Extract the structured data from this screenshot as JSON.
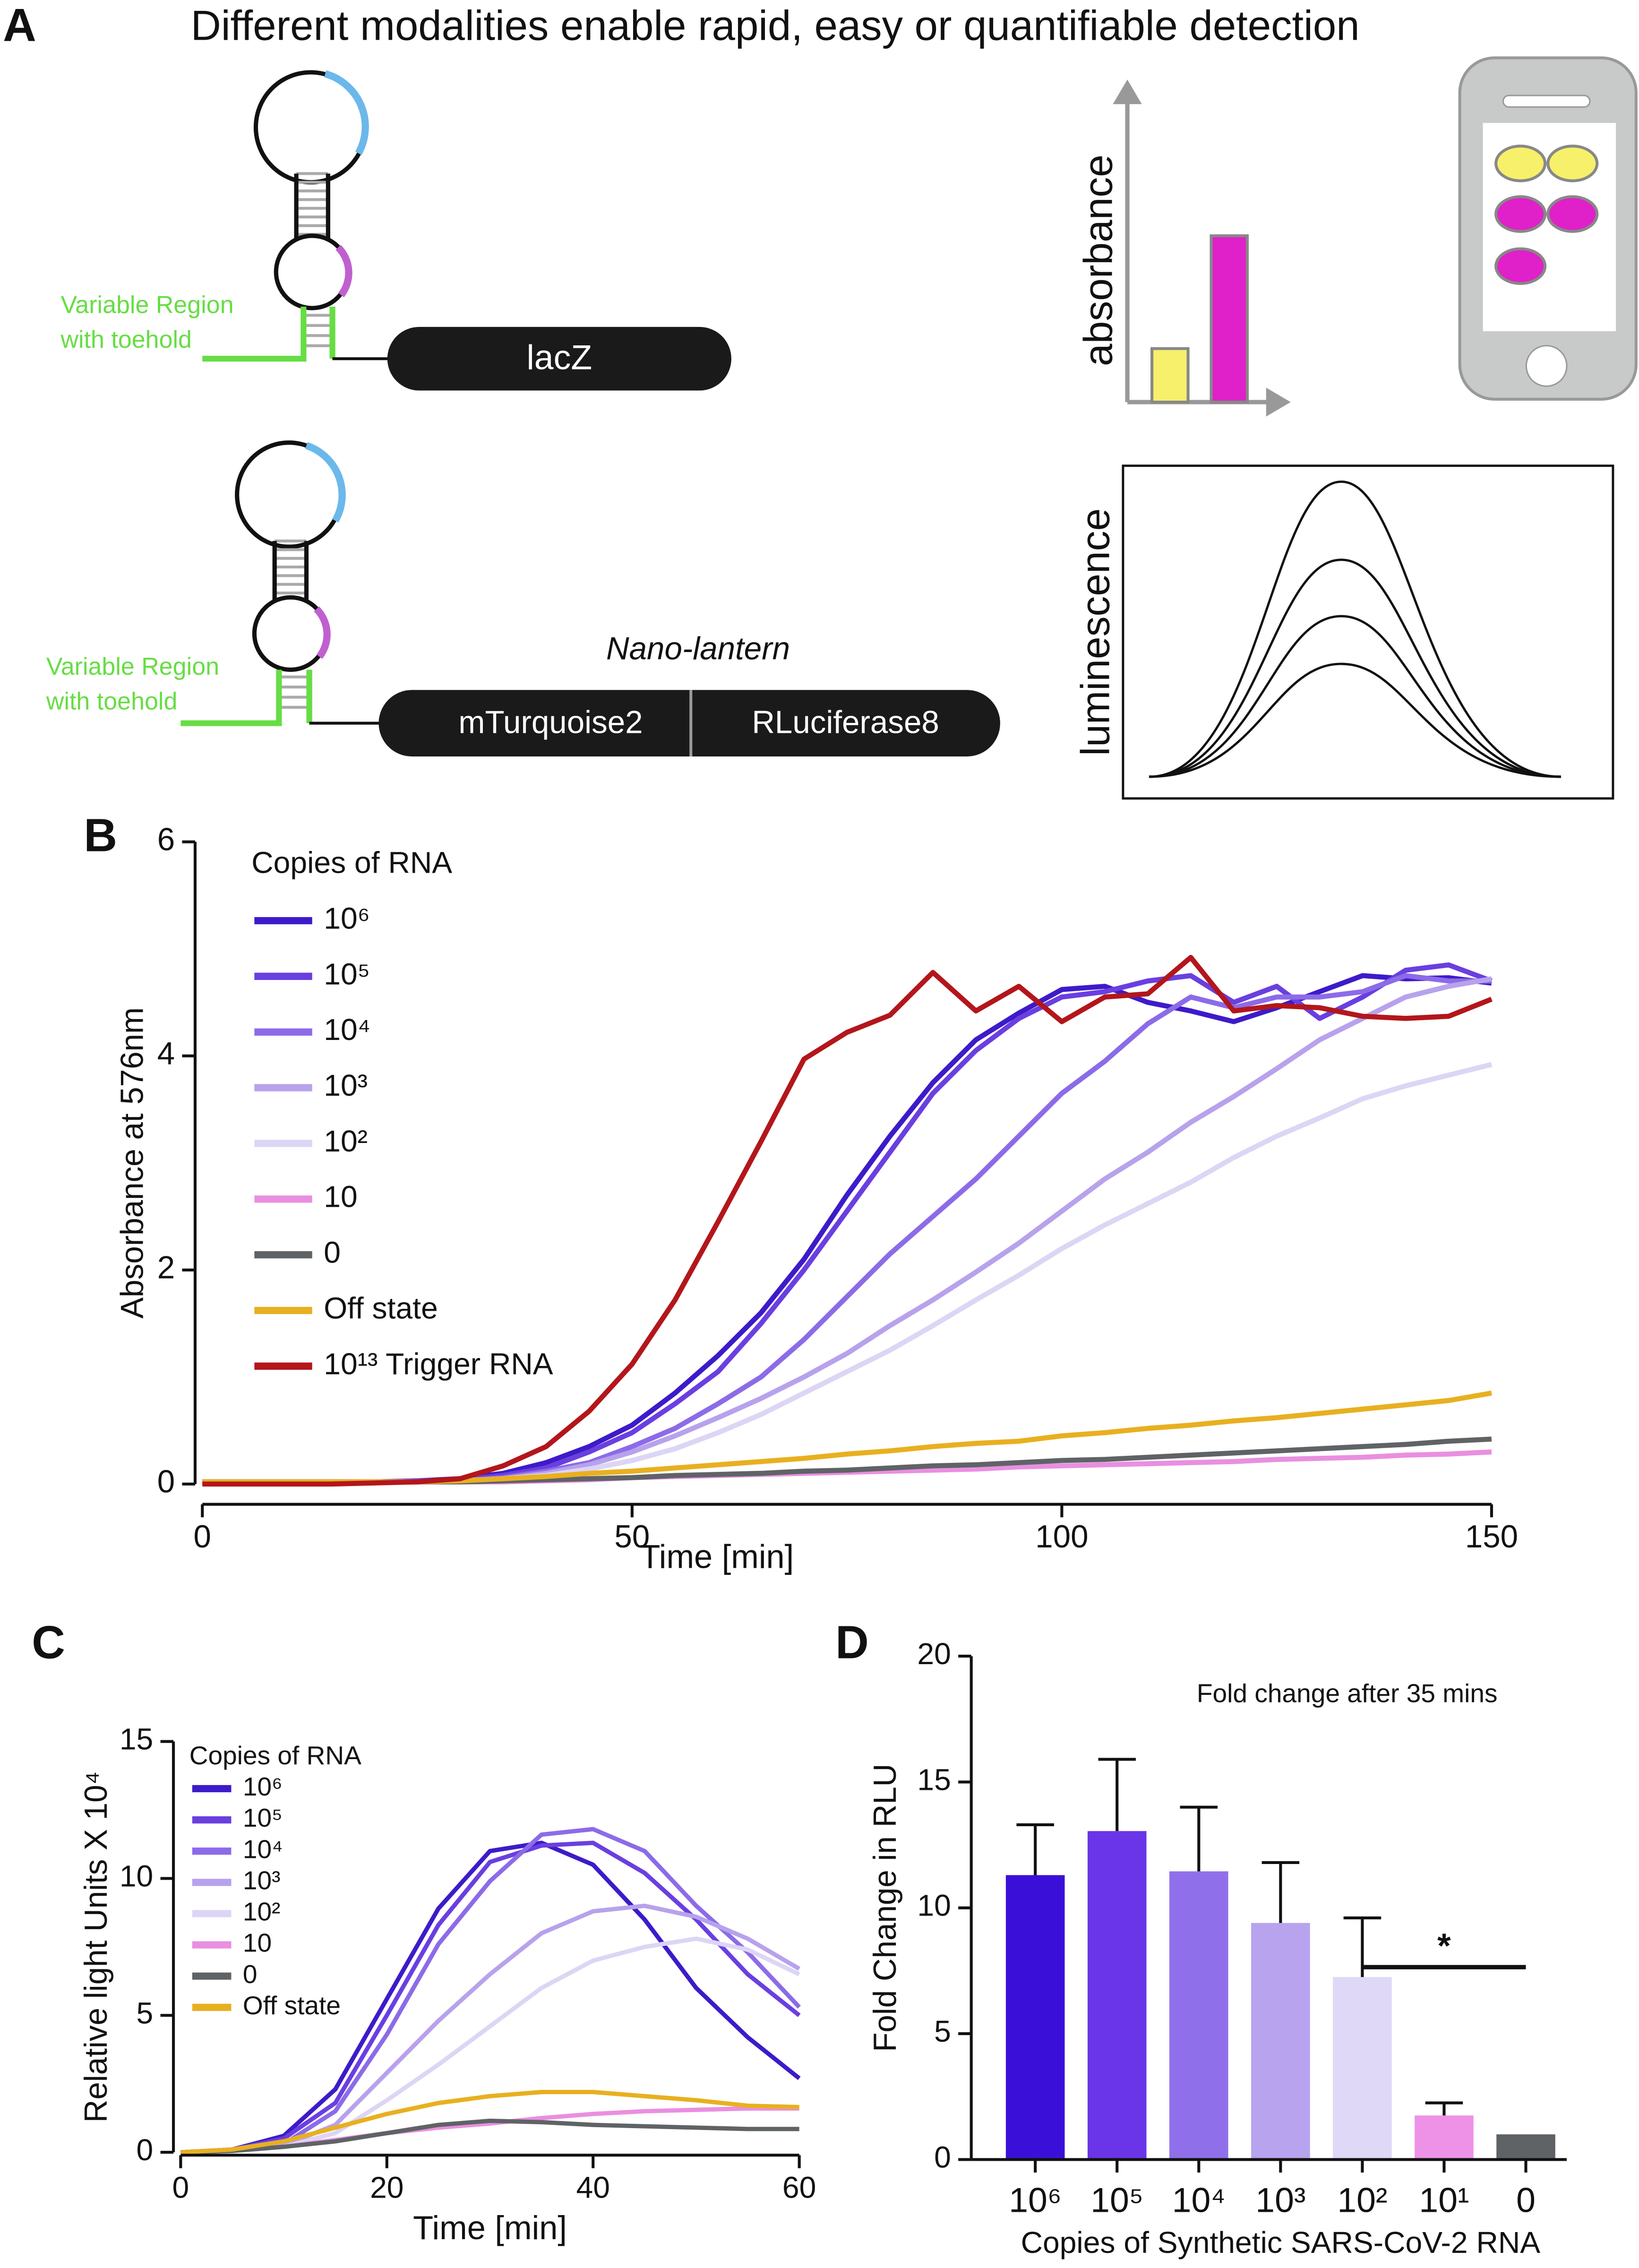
{
  "panel_a": {
    "label": "A",
    "title": "Different modalities enable rapid, easy or quantifiable  detection",
    "construct_1": {
      "region": [
        "Variable Region",
        "with toehold"
      ],
      "reporter": "lacZ"
    },
    "construct_2": {
      "region": [
        "Variable Region",
        "with toehold"
      ],
      "name": "Nano-lantern",
      "reporter": [
        "mTurquoise2",
        "RLuciferase8"
      ]
    },
    "readouts": [
      "absorbance",
      "luminescence"
    ]
  },
  "chart_data": [
    {
      "type": "line",
      "label": "B",
      "xlabel": "Time [min]",
      "ylabel": "Absorbance at 576nm",
      "legend_title": "Copies of RNA",
      "legend": "upper left",
      "xlim": [
        0,
        150
      ],
      "xticks": [
        0,
        50,
        100,
        150
      ],
      "ylim": [
        0,
        6
      ],
      "yticks": [
        0,
        2,
        4,
        6
      ],
      "x": [
        0,
        5,
        10,
        15,
        20,
        25,
        30,
        35,
        40,
        45,
        50,
        55,
        60,
        65,
        70,
        75,
        80,
        85,
        90,
        95,
        100,
        105,
        110,
        115,
        120,
        125,
        130,
        135,
        140,
        145,
        150
      ],
      "series": [
        {
          "name": "10⁶",
          "color": "#3d1bc9",
          "values": [
            0.02,
            0.02,
            0.02,
            0.02,
            0.02,
            0.03,
            0.05,
            0.1,
            0.2,
            0.35,
            0.55,
            0.85,
            1.2,
            1.6,
            2.1,
            2.7,
            3.25,
            3.75,
            4.15,
            4.4,
            4.62,
            4.65,
            4.5,
            4.42,
            4.32,
            4.45,
            4.6,
            4.75,
            4.72,
            4.73,
            4.68
          ]
        },
        {
          "name": "10⁵",
          "color": "#6a3fe0",
          "values": [
            0.02,
            0.02,
            0.02,
            0.02,
            0.02,
            0.03,
            0.04,
            0.08,
            0.15,
            0.3,
            0.48,
            0.75,
            1.05,
            1.5,
            2.0,
            2.55,
            3.1,
            3.65,
            4.05,
            4.35,
            4.55,
            4.6,
            4.7,
            4.75,
            4.5,
            4.65,
            4.35,
            4.55,
            4.8,
            4.85,
            4.7
          ]
        },
        {
          "name": "10⁴",
          "color": "#8c6be8",
          "values": [
            0.02,
            0.02,
            0.02,
            0.02,
            0.02,
            0.02,
            0.03,
            0.06,
            0.12,
            0.2,
            0.35,
            0.52,
            0.75,
            1.0,
            1.35,
            1.75,
            2.15,
            2.5,
            2.85,
            3.25,
            3.65,
            3.95,
            4.3,
            4.55,
            4.45,
            4.55,
            4.55,
            4.6,
            4.75,
            4.7,
            4.7
          ]
        },
        {
          "name": "10³",
          "color": "#b7a2ec",
          "values": [
            0.02,
            0.02,
            0.02,
            0.02,
            0.02,
            0.02,
            0.03,
            0.05,
            0.1,
            0.18,
            0.3,
            0.45,
            0.62,
            0.8,
            1.0,
            1.22,
            1.48,
            1.72,
            1.98,
            2.25,
            2.55,
            2.85,
            3.1,
            3.38,
            3.62,
            3.88,
            4.15,
            4.35,
            4.55,
            4.65,
            4.72
          ]
        },
        {
          "name": "10²",
          "color": "#ddd5f5",
          "values": [
            0.02,
            0.02,
            0.02,
            0.02,
            0.02,
            0.02,
            0.03,
            0.05,
            0.08,
            0.14,
            0.22,
            0.33,
            0.48,
            0.65,
            0.85,
            1.05,
            1.25,
            1.48,
            1.72,
            1.95,
            2.2,
            2.42,
            2.62,
            2.82,
            3.05,
            3.25,
            3.42,
            3.6,
            3.72,
            3.82,
            3.92
          ]
        },
        {
          "name": "10",
          "color": "#e98fe0",
          "values": [
            0.02,
            0.02,
            0.02,
            0.02,
            0.02,
            0.02,
            0.02,
            0.02,
            0.03,
            0.04,
            0.06,
            0.07,
            0.08,
            0.09,
            0.1,
            0.11,
            0.12,
            0.13,
            0.14,
            0.16,
            0.17,
            0.18,
            0.19,
            0.2,
            0.21,
            0.23,
            0.24,
            0.25,
            0.27,
            0.28,
            0.3
          ]
        },
        {
          "name": "0",
          "color": "#5f6366",
          "values": [
            0.02,
            0.02,
            0.02,
            0.02,
            0.02,
            0.02,
            0.02,
            0.03,
            0.04,
            0.05,
            0.06,
            0.08,
            0.09,
            0.1,
            0.12,
            0.13,
            0.15,
            0.17,
            0.18,
            0.2,
            0.22,
            0.23,
            0.25,
            0.27,
            0.29,
            0.31,
            0.33,
            0.35,
            0.37,
            0.4,
            0.42
          ]
        },
        {
          "name": "Off state",
          "color": "#e8b020",
          "values": [
            0.02,
            0.02,
            0.02,
            0.02,
            0.02,
            0.02,
            0.03,
            0.05,
            0.07,
            0.1,
            0.12,
            0.15,
            0.18,
            0.21,
            0.24,
            0.28,
            0.31,
            0.35,
            0.38,
            0.4,
            0.45,
            0.48,
            0.52,
            0.55,
            0.59,
            0.62,
            0.66,
            0.7,
            0.74,
            0.78,
            0.85
          ]
        },
        {
          "name": "10¹³ Trigger RNA",
          "color": "#b3161b",
          "values": [
            0,
            0,
            0,
            0,
            0.01,
            0.02,
            0.05,
            0.17,
            0.35,
            0.68,
            1.12,
            1.72,
            2.45,
            3.2,
            3.97,
            4.22,
            4.38,
            4.78,
            4.42,
            4.65,
            4.32,
            4.55,
            4.58,
            4.92,
            4.42,
            4.47,
            4.45,
            4.37,
            4.35,
            4.37,
            4.53
          ]
        }
      ]
    },
    {
      "type": "line",
      "label": "C",
      "xlabel": "Time [min]",
      "ylabel": "Relative light Units X 10⁴",
      "legend_title": "Copies of RNA",
      "legend": "upper left",
      "xlim": [
        0,
        60
      ],
      "xticks": [
        0,
        20,
        40,
        60
      ],
      "ylim": [
        0,
        15
      ],
      "yticks": [
        0,
        5,
        10,
        15
      ],
      "x": [
        0,
        5,
        10,
        15,
        20,
        25,
        30,
        35,
        40,
        45,
        50,
        55,
        60
      ],
      "series": [
        {
          "name": "10⁶",
          "color": "#3d1bc9",
          "values": [
            0,
            0.1,
            0.6,
            2.3,
            5.6,
            8.9,
            11.0,
            11.3,
            10.5,
            8.5,
            6.0,
            4.2,
            2.7
          ]
        },
        {
          "name": "10⁵",
          "color": "#6a3fe0",
          "values": [
            0,
            0.1,
            0.5,
            1.8,
            5.0,
            8.3,
            10.6,
            11.2,
            11.3,
            10.2,
            8.5,
            6.5,
            5.0
          ]
        },
        {
          "name": "10⁴",
          "color": "#8c6be8",
          "values": [
            0,
            0.05,
            0.3,
            1.5,
            4.3,
            7.6,
            9.9,
            11.6,
            11.8,
            11.0,
            9.0,
            7.3,
            5.3
          ]
        },
        {
          "name": "10³",
          "color": "#b7a2ec",
          "values": [
            0,
            0.05,
            0.25,
            1.0,
            2.9,
            4.8,
            6.5,
            8.0,
            8.8,
            9.0,
            8.6,
            7.8,
            6.7
          ]
        },
        {
          "name": "10²",
          "color": "#ddd5f5",
          "values": [
            0,
            0.05,
            0.2,
            0.7,
            1.9,
            3.2,
            4.6,
            6.0,
            7.0,
            7.5,
            7.8,
            7.4,
            6.5
          ]
        },
        {
          "name": "10",
          "color": "#e98fe0",
          "values": [
            0,
            0.05,
            0.2,
            0.45,
            0.7,
            0.9,
            1.05,
            1.25,
            1.4,
            1.5,
            1.55,
            1.6,
            1.6
          ]
        },
        {
          "name": "0",
          "color": "#5f6366",
          "values": [
            0,
            0.05,
            0.2,
            0.4,
            0.7,
            1.0,
            1.15,
            1.1,
            1.0,
            0.95,
            0.9,
            0.85,
            0.85
          ]
        },
        {
          "name": "Off state",
          "color": "#e8b020",
          "values": [
            0,
            0.1,
            0.4,
            0.9,
            1.4,
            1.8,
            2.05,
            2.2,
            2.2,
            2.05,
            1.9,
            1.7,
            1.65
          ]
        }
      ]
    },
    {
      "type": "bar",
      "label": "D",
      "xlabel": "Copies of Synthetic SARS-CoV-2 RNA",
      "ylabel": "Fold Change in RLU",
      "annotation": "Fold change after 35 mins",
      "significance": "*",
      "ylim": [
        0,
        20
      ],
      "yticks": [
        0,
        5,
        10,
        15,
        20
      ],
      "categories": [
        "10⁶",
        "10⁵",
        "10⁴",
        "10³",
        "10²",
        "10¹",
        "0"
      ],
      "values": [
        11.3,
        13.05,
        11.45,
        9.4,
        7.25,
        1.75,
        1.0
      ],
      "errors": [
        2.0,
        2.85,
        2.55,
        2.4,
        2.35,
        0.5,
        0
      ],
      "colors": [
        "#3a10d8",
        "#6a35e8",
        "#9070ea",
        "#b8a3ee",
        "#e0d8f7",
        "#ee92e8",
        "#5f6366"
      ]
    }
  ]
}
